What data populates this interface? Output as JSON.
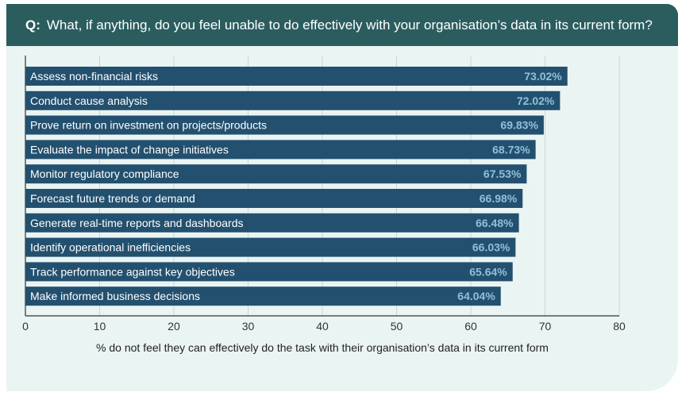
{
  "header": {
    "q_prefix": "Q:",
    "question": "What, if anything, do you feel unable to do effectively with your organisation’s data in its current form?"
  },
  "chart_data": {
    "type": "bar",
    "orientation": "horizontal",
    "categories": [
      "Assess non-financial risks",
      "Conduct cause analysis",
      "Prove return on investment on projects/products",
      "Evaluate the impact of change initiatives",
      "Monitor regulatory compliance",
      "Forecast future trends or demand",
      "Generate real-time reports and dashboards",
      "Identify operational inefficiencies",
      "Track performance against key objectives",
      "Make informed business decisions"
    ],
    "values": [
      73.02,
      72.02,
      69.83,
      68.73,
      67.53,
      66.98,
      66.48,
      66.03,
      65.64,
      64.04
    ],
    "value_labels": [
      "73.02%",
      "72.02%",
      "69.83%",
      "68.73%",
      "67.53%",
      "66.98%",
      "66.48%",
      "66.03%",
      "65.64%",
      "64.04%"
    ],
    "xlim": [
      0,
      80
    ],
    "xticks": [
      "0",
      "10",
      "20",
      "30",
      "40",
      "50",
      "60",
      "70",
      "80"
    ],
    "xlabel": "% do not feel they can effectively do the task with their organisation’s data in its current form",
    "grid": true,
    "bar_color": "#23506f"
  }
}
